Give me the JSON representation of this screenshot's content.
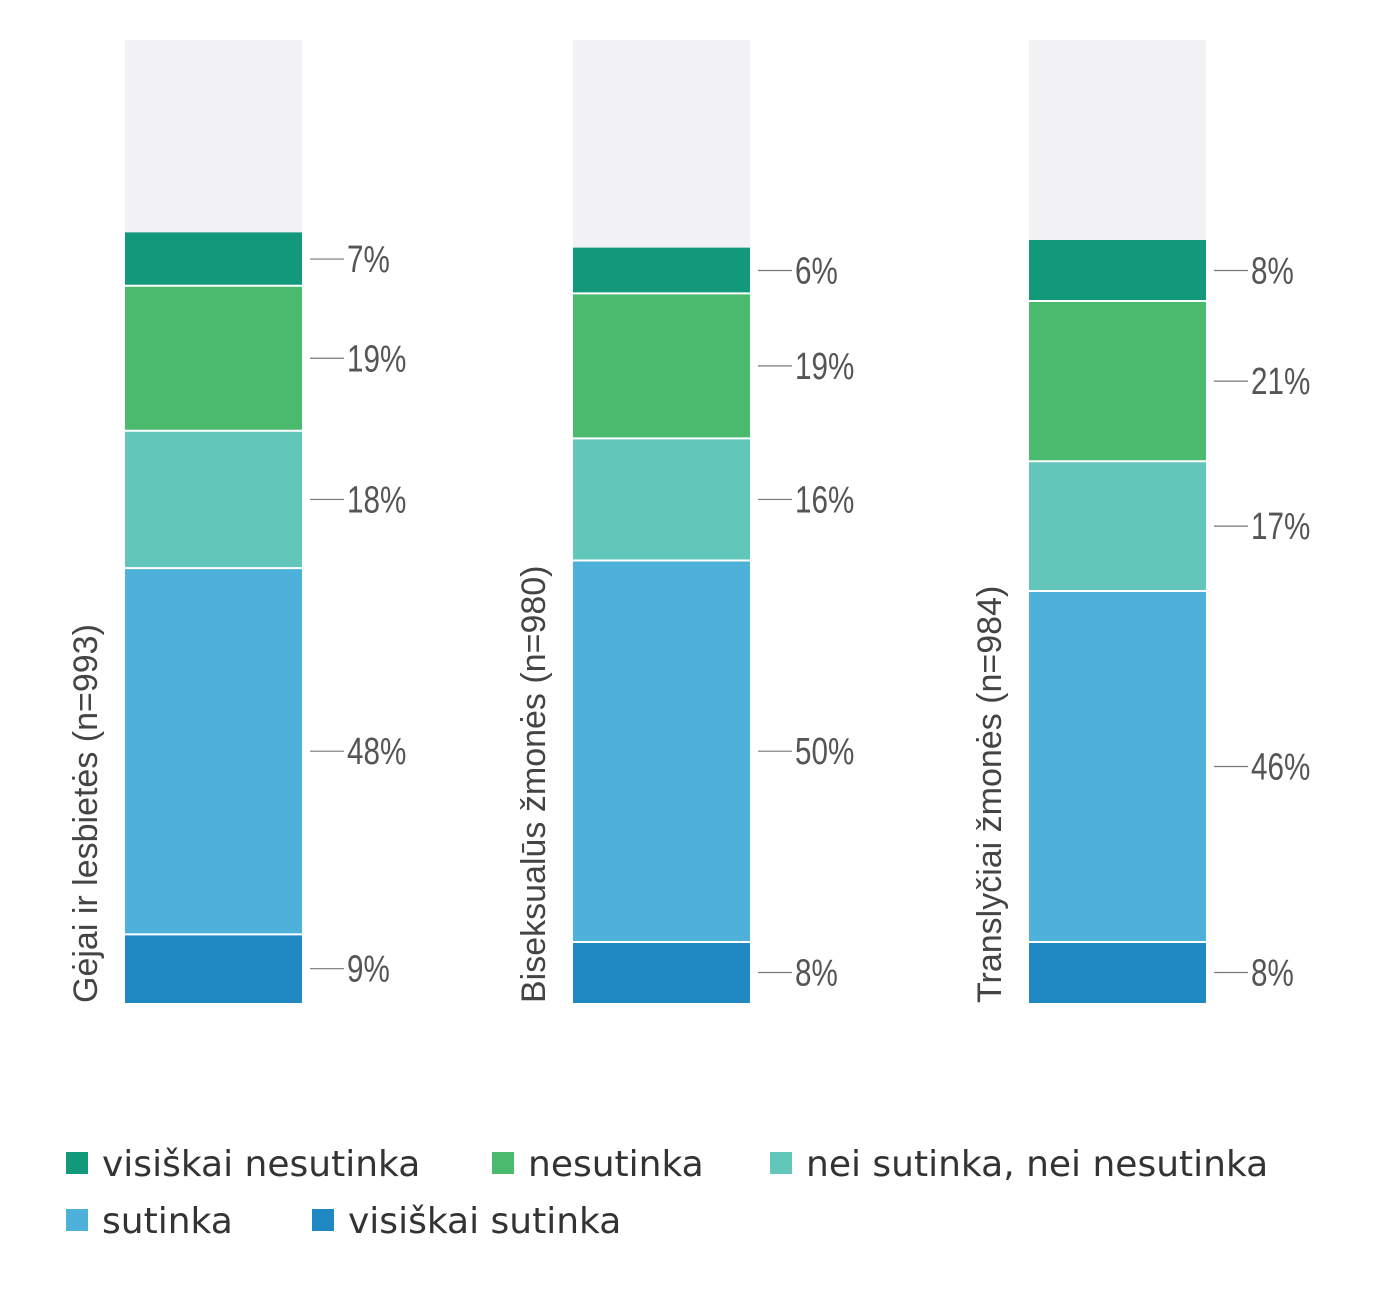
{
  "chart_data": {
    "type": "bar",
    "stacked": true,
    "orientation": "vertical",
    "categories": [
      "Gėjai ir lesbietės (n=993)",
      "Biseksualūs žmonės (n=980)",
      "Translyčiai žmonės (n=984)"
    ],
    "series": [
      {
        "name": "visiškai sutinka",
        "color": "#2089c4",
        "values": [
          9,
          8,
          8
        ]
      },
      {
        "name": "sutinka",
        "color": "#4db1d9",
        "values": [
          48,
          50,
          46
        ]
      },
      {
        "name": "nei sutinka, nei nesutinka",
        "color": "#63c6bb",
        "values": [
          18,
          16,
          17
        ]
      },
      {
        "name": "nesutinka",
        "color": "#4aba6e",
        "values": [
          19,
          19,
          21
        ]
      },
      {
        "name": "visiškai nesutinka",
        "color": "#12997a",
        "values": [
          7,
          6,
          8
        ]
      }
    ],
    "value_suffix": "%",
    "legend_order": [
      "visiškai nesutinka",
      "nesutinka",
      "nei sutinka, nei nesutinka",
      "sutinka",
      "visiškai sutinka"
    ],
    "legend_placement": "bottom",
    "background_color": "#f2f2f4",
    "grid": false
  }
}
